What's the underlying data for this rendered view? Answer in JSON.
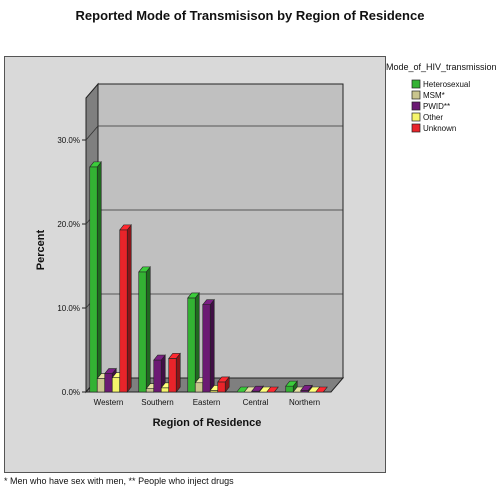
{
  "chart_data": {
    "type": "bar",
    "title": "Reported Mode of Transmisison by Region of Residence",
    "xlabel": "Region of Residence",
    "ylabel": "Percent",
    "categories": [
      "Western",
      "Southern",
      "Eastern",
      "Central",
      "Northern"
    ],
    "y_ticks": [
      "0.0%",
      "10.0%",
      "20.0%",
      "30.0%"
    ],
    "ylim": [
      0,
      35
    ],
    "legend_title": "Mode_of_HIV_transmission",
    "legend_position": "right",
    "series": [
      {
        "name": "Heterosexual",
        "color": "#33b233",
        "values": [
          26.8,
          14.3,
          11.2,
          0.0,
          0.7
        ]
      },
      {
        "name": "MSM*",
        "color": "#c9c58e",
        "values": [
          1.6,
          0.4,
          1.1,
          0.0,
          0.0
        ]
      },
      {
        "name": "PWID**",
        "color": "#6b1a73",
        "values": [
          2.2,
          3.8,
          10.4,
          0.1,
          0.2
        ]
      },
      {
        "name": "Other",
        "color": "#f5f56b",
        "values": [
          1.7,
          0.5,
          0.2,
          0.0,
          0.0
        ]
      },
      {
        "name": "Unknown",
        "color": "#e8242a",
        "values": [
          19.3,
          4.0,
          1.2,
          0.0,
          0.0
        ]
      }
    ],
    "footnote": "* Men who have sex with men, ** People who inject drugs"
  }
}
